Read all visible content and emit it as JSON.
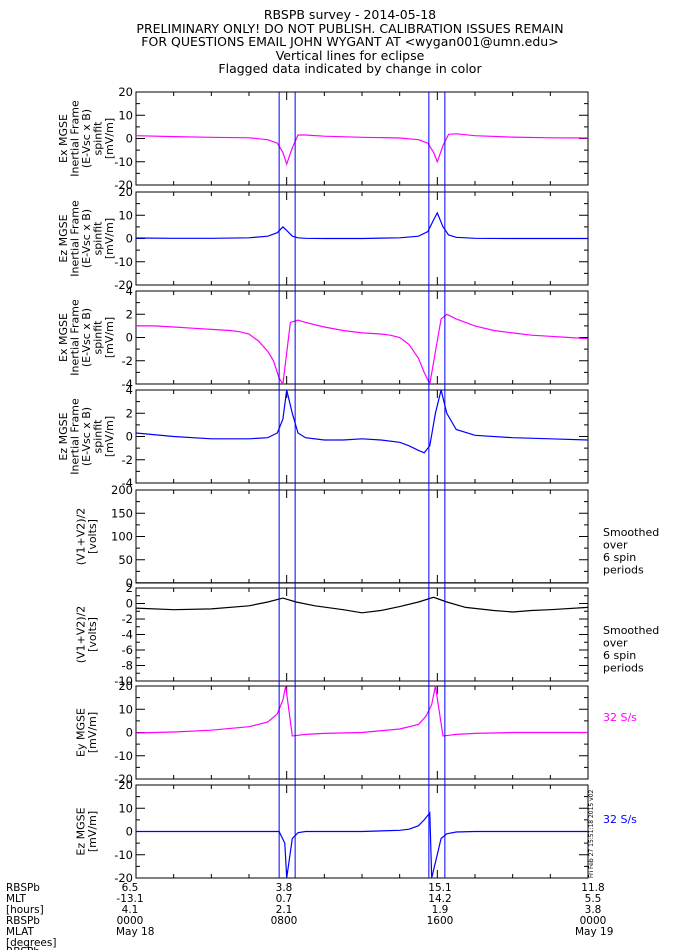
{
  "header": {
    "line1": "RBSPB survey - 2014-05-18",
    "line2": "PRELIMINARY ONLY! DO NOT PUBLISH. CALIBRATION ISSUES REMAIN",
    "line3": "FOR QUESTIONS EMAIL JOHN WYGANT AT <wygan001@umn.edu>",
    "line4": "Vertical lines for eclipse",
    "line5": "Flagged data indicated by change in color"
  },
  "colors": {
    "magenta": "#ff00ff",
    "blue": "#0000ff",
    "black": "#000000",
    "eclipse": "#0000ff"
  },
  "chart_data": [
    {
      "type": "line",
      "panel": 1,
      "ylabel": [
        "Ex MGSE",
        "Inertial Frame",
        "(E-Vsc x B)",
        "spinfit",
        "[mV/m]"
      ],
      "ylim": [
        -20,
        20
      ],
      "yticks": [
        20,
        10,
        0,
        -10,
        -20
      ],
      "color": "magenta",
      "x": [
        0,
        2,
        4,
        6,
        7,
        7.5,
        7.8,
        8.0,
        8.3,
        8.6,
        9,
        10,
        12,
        14,
        15,
        15.5,
        15.8,
        16.0,
        16.3,
        16.6,
        17,
        18,
        20,
        22,
        24
      ],
      "y": [
        1.2,
        0.8,
        0.5,
        0.3,
        -0.5,
        -2,
        -6,
        -11,
        -4,
        1.5,
        1.5,
        1.0,
        0.5,
        0.2,
        -0.5,
        -2,
        -6,
        -10,
        -3,
        1.8,
        2.0,
        1.2,
        0.6,
        0.3,
        0.2
      ],
      "right_label": []
    },
    {
      "type": "line",
      "panel": 2,
      "ylabel": [
        "Ez MGSE",
        "Inertial Frame",
        "(E-Vsc x B)",
        "spinfit",
        "[mV/m]"
      ],
      "ylim": [
        -20,
        20
      ],
      "yticks": [
        20,
        10,
        0,
        -10,
        -20
      ],
      "color": "blue",
      "x": [
        0,
        2,
        4,
        6,
        7,
        7.5,
        7.8,
        8.0,
        8.3,
        8.6,
        9,
        10,
        12,
        14,
        15,
        15.5,
        15.8,
        16.0,
        16.3,
        16.6,
        17,
        18,
        20,
        22,
        24
      ],
      "y": [
        0.2,
        0.1,
        0.1,
        0.3,
        1.0,
        2.5,
        5.0,
        3.5,
        1.0,
        0.3,
        0.1,
        0,
        0,
        0.3,
        1.0,
        3.0,
        8.0,
        11.0,
        5.0,
        1.5,
        0.5,
        0.1,
        0,
        0,
        0
      ],
      "right_label": []
    },
    {
      "type": "line",
      "panel": 3,
      "ylabel": [
        "Ex MGSE",
        "Inertial Frame",
        "(E-Vsc x B)",
        "spinfit",
        "[mV/m]"
      ],
      "ylim": [
        -4,
        4
      ],
      "yticks": [
        4,
        2,
        0,
        -2,
        -4
      ],
      "color": "magenta",
      "x": [
        0,
        1,
        2,
        3,
        4,
        5,
        5.5,
        6,
        6.5,
        7,
        7.3,
        7.6,
        7.8,
        8.2,
        8.6,
        9,
        10,
        11,
        12,
        13,
        13.5,
        14,
        14.5,
        15,
        15.3,
        15.6,
        16.2,
        16.5,
        17,
        18,
        19,
        20,
        21,
        22,
        23,
        24
      ],
      "y": [
        1.0,
        1.0,
        0.9,
        0.8,
        0.7,
        0.6,
        0.5,
        0.3,
        -0.3,
        -1.2,
        -2.0,
        -3.5,
        -4.0,
        1.3,
        1.5,
        1.3,
        0.9,
        0.6,
        0.4,
        0.3,
        0.2,
        0.0,
        -0.6,
        -1.8,
        -3.0,
        -4.0,
        1.6,
        2.0,
        1.6,
        1.0,
        0.6,
        0.4,
        0.2,
        0.1,
        0.0,
        -0.1
      ],
      "right_label": []
    },
    {
      "type": "line",
      "panel": 4,
      "ylabel": [
        "Ez MGSE",
        "Inertial Frame",
        "(E-Vsc x B)",
        "spinfit",
        "[mV/m]"
      ],
      "ylim": [
        -4,
        4
      ],
      "yticks": [
        4,
        2,
        0,
        -2,
        -4
      ],
      "color": "blue",
      "x": [
        0,
        2,
        4,
        6,
        7,
        7.5,
        7.8,
        8.0,
        8.3,
        8.6,
        9,
        10,
        11,
        12,
        13,
        14,
        14.5,
        15,
        15.3,
        15.6,
        15.9,
        16.2,
        16.5,
        17,
        18,
        20,
        22,
        24
      ],
      "y": [
        0.3,
        0.0,
        -0.2,
        -0.2,
        -0.1,
        0.3,
        1.5,
        4.0,
        2.0,
        0.3,
        -0.1,
        -0.3,
        -0.3,
        -0.2,
        -0.3,
        -0.5,
        -0.8,
        -1.2,
        -1.4,
        -0.8,
        2.0,
        4.0,
        2.0,
        0.6,
        0.1,
        -0.1,
        -0.2,
        -0.3
      ],
      "right_label": []
    },
    {
      "type": "line",
      "panel": 5,
      "ylabel": [
        "(V1+V2)/2",
        "[volts]"
      ],
      "ylim": [
        0,
        200
      ],
      "yticks": [
        200,
        150,
        100,
        50,
        0
      ],
      "color": "black",
      "x": [
        0,
        24
      ],
      "y": [
        0.5,
        0.5
      ],
      "right_label": [
        "Smoothed",
        "over",
        "6 spin",
        "periods"
      ]
    },
    {
      "type": "line",
      "panel": 6,
      "ylabel": [
        "(V1+V2)/2",
        "[volts]"
      ],
      "ylim": [
        -10,
        2
      ],
      "yticks": [
        2,
        0,
        -2,
        -4,
        -6,
        -8,
        -10
      ],
      "color": "black",
      "x": [
        0,
        2,
        4,
        6,
        7,
        7.8,
        8.5,
        9.5,
        11,
        12,
        13,
        14,
        15,
        15.8,
        16.5,
        17.5,
        19,
        20,
        21,
        22,
        24
      ],
      "y": [
        -0.6,
        -0.8,
        -0.7,
        -0.3,
        0.2,
        0.7,
        0.2,
        -0.3,
        -0.8,
        -1.2,
        -0.9,
        -0.4,
        0.2,
        0.8,
        0.2,
        -0.5,
        -0.9,
        -1.1,
        -0.9,
        -0.8,
        -0.5
      ],
      "right_label": [
        "Smoothed",
        "over",
        "6 spin",
        "periods"
      ]
    },
    {
      "type": "line",
      "panel": 7,
      "ylabel": [
        "Ey MGSE",
        "[mV/m]"
      ],
      "ylim": [
        -20,
        20
      ],
      "yticks": [
        20,
        10,
        0,
        -10,
        -20
      ],
      "color": "magenta",
      "x": [
        0,
        2,
        4,
        6,
        7,
        7.5,
        7.8,
        7.95,
        8.3,
        8.6,
        9,
        10,
        12,
        14,
        15,
        15.4,
        15.7,
        15.9,
        16.3,
        16.6,
        17,
        18,
        20,
        22,
        24
      ],
      "y": [
        -0.2,
        0.2,
        1.0,
        2.5,
        4.5,
        8.0,
        14.0,
        20.0,
        -1.5,
        -1.2,
        -0.8,
        -0.4,
        0.0,
        1.5,
        3.5,
        7.0,
        12.0,
        20.0,
        -1.5,
        -1.2,
        -0.8,
        -0.4,
        0.0,
        0.0,
        0.0
      ],
      "right_label": [
        "32 S/s"
      ]
    },
    {
      "type": "line",
      "panel": 8,
      "ylabel": [
        "Ez MGSE",
        "[mV/m]"
      ],
      "ylim": [
        -20,
        20
      ],
      "yticks": [
        20,
        10,
        0,
        -10,
        -20
      ],
      "color": "blue",
      "x": [
        0,
        2,
        4,
        6,
        7,
        7.6,
        7.9,
        8.0,
        8.3,
        8.6,
        9,
        10,
        12,
        14,
        14.5,
        15,
        15.3,
        15.6,
        15.7,
        16.2,
        16.5,
        17,
        18,
        20,
        22,
        24
      ],
      "y": [
        0.0,
        0.0,
        0.0,
        0.0,
        0.0,
        0.0,
        -5.0,
        -20.0,
        -3.0,
        -0.5,
        0.0,
        0.0,
        0.0,
        0.5,
        1.0,
        2.5,
        5.0,
        8.0,
        -20.0,
        -3.0,
        -1.0,
        -0.2,
        0.0,
        0.0,
        0.0,
        0.0
      ],
      "right_label": [
        "32 S/s"
      ]
    }
  ],
  "eclipse_hours": [
    7.6,
    8.45,
    15.55,
    16.4
  ],
  "side_stamp": "Fri Feb 27 15:51:18 2015 v02",
  "xaxis": {
    "row_labels": [
      "RBSPb",
      "MLT",
      "[hours]",
      "RBSPb",
      "MLAT",
      "[degrees]"
    ],
    "cut_label": "RBSPb",
    "columns": [
      {
        "rows": [
          "6.5",
          "-13.1",
          "4.1",
          "0000",
          "May 18"
        ]
      },
      {
        "rows": [
          "3.8",
          "0.7",
          "2.1",
          "0800"
        ]
      },
      {
        "rows": [
          "15.1",
          "14.2",
          "1.9",
          "1600"
        ]
      },
      {
        "rows": [
          "11.8",
          "5.5",
          "3.8",
          "0000",
          "May 19"
        ]
      }
    ]
  }
}
